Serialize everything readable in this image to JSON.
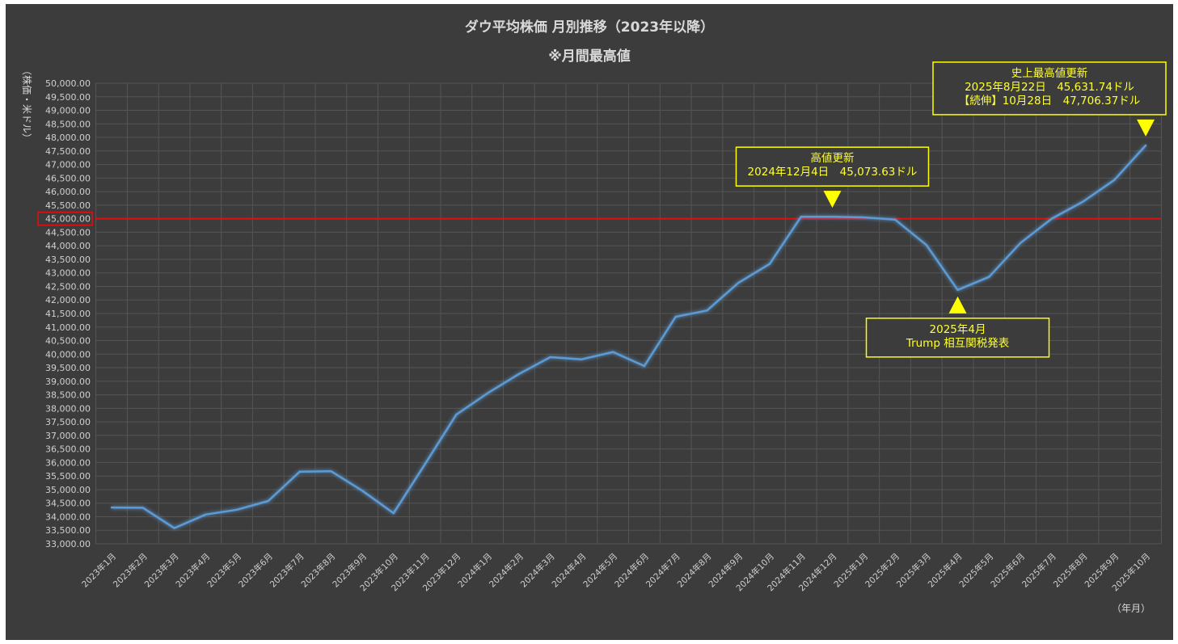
{
  "chart_data": {
    "type": "line",
    "title": "ダウ平均株価 月別推移（2023年以降）",
    "subtitle": "※月間最高値",
    "ylabel": "（株価・米ドル）",
    "xlabel": "（年月）",
    "ylim": [
      33000,
      50000
    ],
    "ytick_step": 500,
    "grid": true,
    "reference_line": {
      "value": 45000,
      "label": "45,000.00",
      "color": "#dd1111"
    },
    "line_color": "#5b9bd5",
    "categories": [
      "2023年1月",
      "2023年2月",
      "2023年3月",
      "2023年4月",
      "2023年5月",
      "2023年6月",
      "2023年7月",
      "2023年8月",
      "2023年9月",
      "2023年10月",
      "2023年11月",
      "2023年12月",
      "2024年1月",
      "2024年2月",
      "2024年3月",
      "2024年4月",
      "2024年5月",
      "2024年6月",
      "2024年7月",
      "2024年8月",
      "2024年9月",
      "2024年10月",
      "2024年11月",
      "2024年12月",
      "2025年1月",
      "2025年2月",
      "2025年3月",
      "2025年4月",
      "2025年5月",
      "2025年6月",
      "2025年7月",
      "2025年8月",
      "2025年9月",
      "2025年10月"
    ],
    "series": [
      {
        "values": [
          34340,
          34330,
          33580,
          34080,
          34260,
          34580,
          35660,
          35680,
          34960,
          34130,
          35940,
          37770,
          38560,
          39270,
          39890,
          39810,
          40080,
          39560,
          41380,
          41610,
          42630,
          43330,
          45070,
          45073.63,
          45050,
          44970,
          44030,
          42370,
          42850,
          44100,
          45000,
          45631.74,
          46430,
          47706.37
        ]
      }
    ],
    "annotations": [
      {
        "category_index": 23,
        "direction": "down",
        "box": "top",
        "lines": [
          "高値更新",
          "2024年12月4日　45,073.63ドル"
        ]
      },
      {
        "category_index": 27,
        "direction": "up",
        "box": "bottom",
        "lines": [
          "2025年4月",
          "Trump 相互関税発表"
        ]
      },
      {
        "category_index": 33,
        "direction": "down",
        "box": "top",
        "lines": [
          "史上最高値更新",
          "2025年8月22日　45,631.74ドル",
          "【続伸】10月28日　47,706.37ドル"
        ]
      }
    ]
  }
}
